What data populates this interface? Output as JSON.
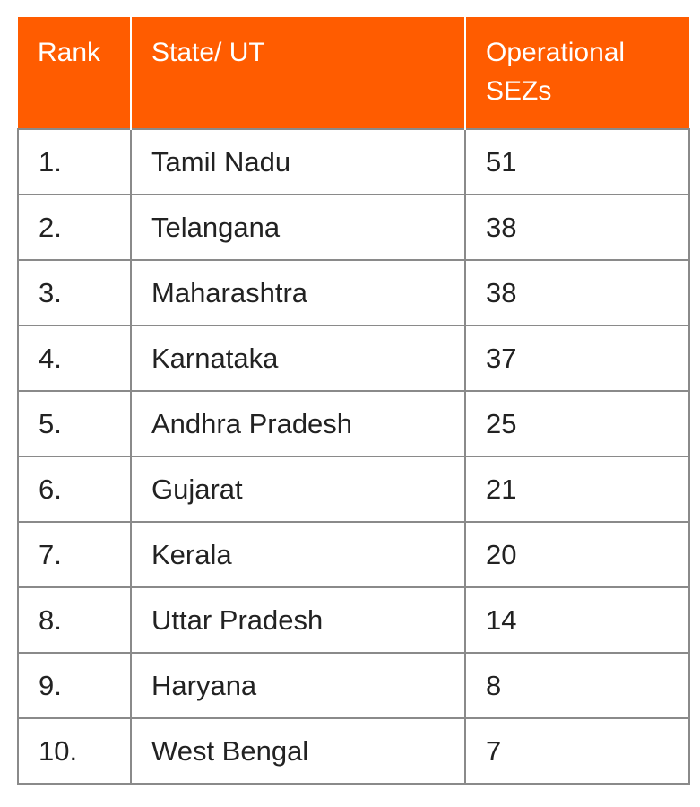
{
  "table": {
    "headers": {
      "rank": "Rank",
      "state": "State/ UT",
      "count": "Operational SEZs"
    },
    "rows": [
      {
        "rank": "1.",
        "state": "Tamil Nadu",
        "count": "51"
      },
      {
        "rank": "2.",
        "state": "Telangana",
        "count": "38"
      },
      {
        "rank": "3.",
        "state": "Maharashtra",
        "count": "38"
      },
      {
        "rank": "4.",
        "state": "Karnataka",
        "count": "37"
      },
      {
        "rank": "5.",
        "state": "Andhra Pradesh",
        "count": "25"
      },
      {
        "rank": "6.",
        "state": "Gujarat",
        "count": "21"
      },
      {
        "rank": "7.",
        "state": "Kerala",
        "count": "20"
      },
      {
        "rank": "8.",
        "state": "Uttar Pradesh",
        "count": "14"
      },
      {
        "rank": "9.",
        "state": "Haryana",
        "count": "8"
      },
      {
        "rank": "10.",
        "state": "West Bengal",
        "count": "7"
      }
    ]
  },
  "colors": {
    "header_background": "#ff5c00",
    "header_text": "#ffffff",
    "border": "#8a8a8a",
    "body_text": "#222222"
  }
}
